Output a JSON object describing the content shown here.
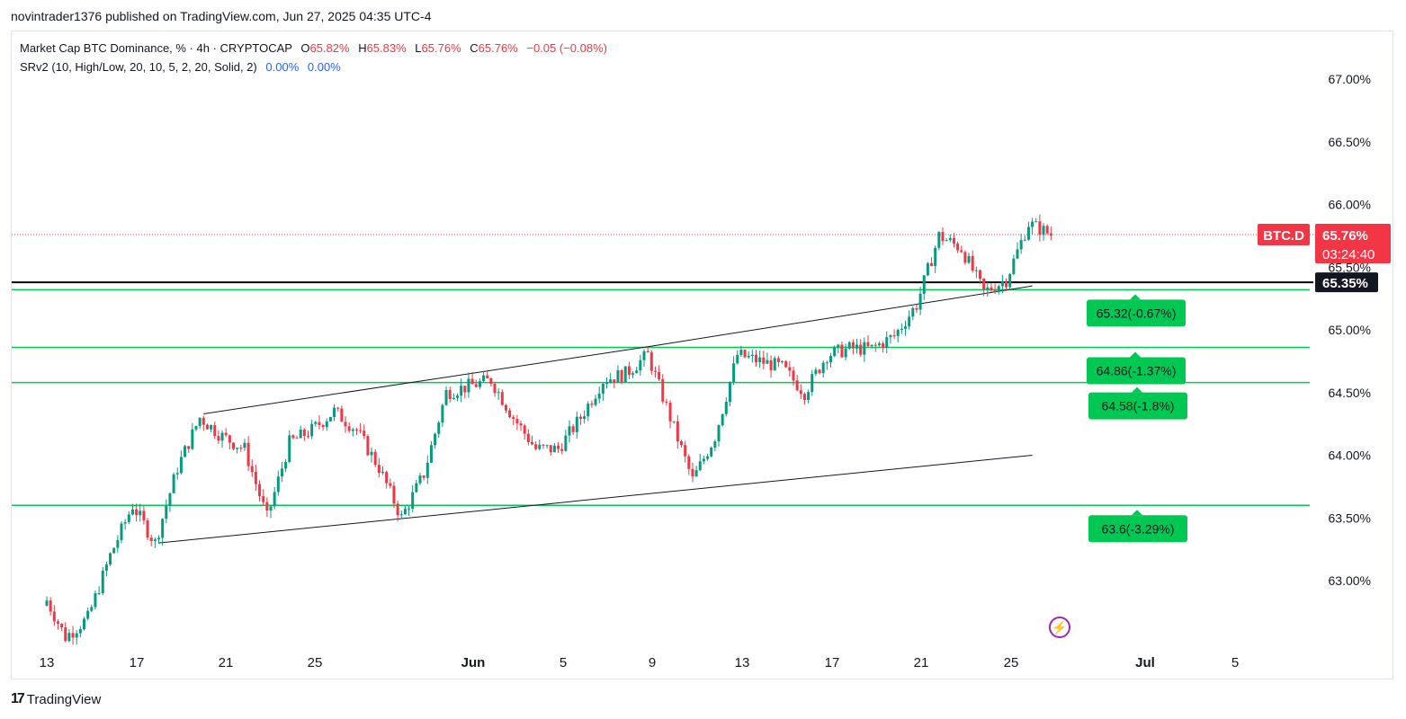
{
  "publish_line": "novintrader1376 published on TradingView.com, Jun 27, 2025 04:35 UTC-4",
  "legend": {
    "title": "Market Cap BTC Dominance, % · 4h · CRYPTOCAP",
    "o_label": "O",
    "o_value": "65.82%",
    "h_label": "H",
    "h_value": "65.83%",
    "l_label": "L",
    "l_value": "65.76%",
    "c_label": "C",
    "c_value": "65.76%",
    "change": "−0.05 (−0.08%)",
    "indicator": "SRv2 (10, High/Low, 20, 10, 5, 2, 20, Solid, 2)",
    "ind_v1": "0.00%",
    "ind_v2": "0.00%"
  },
  "footer": {
    "logo": "17",
    "brand": "TradingView"
  },
  "colors": {
    "up": "#089981",
    "down": "#f23645",
    "sr": "#00c853",
    "accent": "#f23645",
    "text": "#131722"
  },
  "chart_data": {
    "type": "candlestick",
    "symbol": "BTC.D",
    "timeframe": "4h",
    "y_axis": {
      "min": 62.5,
      "max": 67.3,
      "ticks": [
        "67.00%",
        "66.50%",
        "66.00%",
        "65.50%",
        "65.00%",
        "64.50%",
        "64.00%",
        "63.50%",
        "63.00%"
      ]
    },
    "x_axis": {
      "ticks": [
        "13",
        "17",
        "21",
        "25",
        "Jun",
        "5",
        "9",
        "13",
        "17",
        "21",
        "25",
        "Jul",
        "5"
      ]
    },
    "last_price": {
      "symbol_label": "BTC.D",
      "value": 65.76,
      "value_label": "65.76%",
      "countdown": "03:24:40"
    },
    "horizontal_line": {
      "value": 65.35,
      "label": "65.35%"
    },
    "support_levels": [
      {
        "value": 65.32,
        "label": "65.32(-0.67%)"
      },
      {
        "value": 64.86,
        "label": "64.86(-1.37%)"
      },
      {
        "value": 64.58,
        "label": "64.58(-1.8%)"
      },
      {
        "value": 63.6,
        "label": "63.6(-3.29%)"
      }
    ],
    "trendlines": [
      {
        "from": [
          "May 20",
          64.33
        ],
        "to": [
          "Jun 9",
          64.87
        ]
      },
      {
        "from": [
          "Jun 9",
          64.87
        ],
        "to": [
          "Jun 26",
          65.35
        ]
      },
      {
        "from": [
          "May 18",
          63.3
        ],
        "to": [
          "Jun 26",
          64.0
        ]
      }
    ],
    "series_path": [
      [
        "May 13",
        62.9
      ],
      [
        "May 14",
        62.55
      ],
      [
        "May 15",
        62.7
      ],
      [
        "May 16",
        63.2
      ],
      [
        "May 17",
        63.6
      ],
      [
        "May 18",
        63.3
      ],
      [
        "May 19",
        63.9
      ],
      [
        "May 20",
        64.3
      ],
      [
        "May 21",
        64.15
      ],
      [
        "May 22",
        64.05
      ],
      [
        "May 23",
        63.5
      ],
      [
        "May 24",
        64.1
      ],
      [
        "May 25",
        64.2
      ],
      [
        "May 26",
        64.35
      ],
      [
        "May 27",
        64.2
      ],
      [
        "May 28",
        63.9
      ],
      [
        "May 29",
        63.5
      ],
      [
        "May 30",
        63.85
      ],
      [
        "May 31",
        64.5
      ],
      [
        "Jun 1",
        64.55
      ],
      [
        "Jun 2",
        64.6
      ],
      [
        "Jun 3",
        64.3
      ],
      [
        "Jun 4",
        64.05
      ],
      [
        "Jun 5",
        64.05
      ],
      [
        "Jun 6",
        64.3
      ],
      [
        "Jun 7",
        64.6
      ],
      [
        "Jun 8",
        64.65
      ],
      [
        "Jun 9",
        64.8
      ],
      [
        "Jun 10",
        64.3
      ],
      [
        "Jun 11",
        63.8
      ],
      [
        "Jun 12",
        64.15
      ],
      [
        "Jun 13",
        64.8
      ],
      [
        "Jun 14",
        64.75
      ],
      [
        "Jun 15",
        64.7
      ],
      [
        "Jun 16",
        64.5
      ],
      [
        "Jun 17",
        64.8
      ],
      [
        "Jun 18",
        64.85
      ],
      [
        "Jun 19",
        64.85
      ],
      [
        "Jun 20",
        64.95
      ],
      [
        "Jun 21",
        65.2
      ],
      [
        "Jun 22",
        65.75
      ],
      [
        "Jun 23",
        65.65
      ],
      [
        "Jun 24",
        65.3
      ],
      [
        "Jun 25",
        65.4
      ],
      [
        "Jun 26",
        65.85
      ],
      [
        "Jun 27",
        65.76
      ]
    ]
  }
}
